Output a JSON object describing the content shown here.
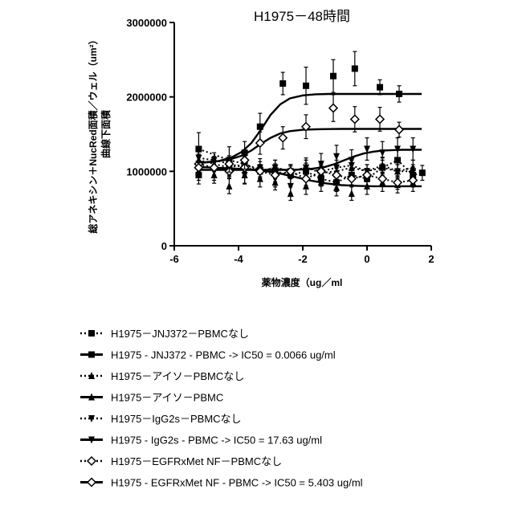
{
  "chart_data": {
    "type": "scatter",
    "title": "H1975－48時間",
    "xlabel": "薬物濃度（ug／ml",
    "ylabel_line1": "総アネキシン＋NucRed面積／ウェル（um²）",
    "ylabel_line2": "曲線下面積",
    "xlim": [
      -6,
      2
    ],
    "ylim": [
      0,
      3000000
    ],
    "x_ticks": [
      -6,
      -4,
      -2,
      0,
      2
    ],
    "x_tick_labels": [
      "-6",
      "-4",
      "-2",
      "0",
      "2"
    ],
    "y_ticks": [
      0,
      1000000,
      2000000,
      3000000
    ],
    "y_tick_labels": [
      "0",
      "1000000",
      "2000000",
      "3000000"
    ],
    "legend_position": "bottom",
    "series": [
      {
        "name": "H1975－JNJ372－PBMCなし",
        "marker": "square",
        "line": "dotted",
        "color": "#000000",
        "x": [
          -5.24,
          -4.29,
          -3.81,
          -3.33,
          -2.86,
          -2.38,
          -1.9,
          -1.43,
          -0.95,
          -0.48,
          0,
          0.48,
          0.95,
          1.43,
          1.72
        ],
        "y": [
          1300000,
          1150000,
          1100000,
          1020000,
          1000000,
          950000,
          1000000,
          900000,
          850000,
          950000,
          900000,
          1050000,
          1150000,
          950000,
          980000
        ],
        "err": [
          220000,
          180000,
          130000,
          110000,
          100000,
          120000,
          110000,
          100000,
          120000,
          130000,
          120000,
          140000,
          160000,
          110000,
          100000
        ],
        "fit_x": [],
        "fit_y": []
      },
      {
        "name": "H1975 - JNJ372 - PBMC -> IC50 = 0.0066 ug/ml",
        "marker": "square",
        "line": "solid",
        "color": "#000000",
        "x": [
          -5.24,
          -4.29,
          -3.81,
          -3.33,
          -2.62,
          -1.9,
          -1.05,
          -0.38,
          0.4,
          1.0
        ],
        "y": [
          950000,
          1050000,
          1250000,
          1600000,
          2180000,
          2150000,
          2280000,
          2380000,
          2130000,
          2040000
        ],
        "err": [
          120000,
          110000,
          150000,
          180000,
          150000,
          250000,
          220000,
          230000,
          100000,
          110000
        ],
        "fit_x": [
          -5.3,
          -5.0,
          -4.6,
          -4.2,
          -3.9,
          -3.6,
          -3.3,
          -3.0,
          -2.7,
          -2.4,
          -2.0,
          -1.6,
          -1.2,
          -0.8,
          -0.4,
          0,
          0.4,
          0.8,
          1.2,
          1.7
        ],
        "fit_y": [
          1110000,
          1120000,
          1140000,
          1190000,
          1260000,
          1380000,
          1560000,
          1760000,
          1900000,
          1980000,
          2020000,
          2035000,
          2040000,
          2040000,
          2040000,
          2040000,
          2040000,
          2040000,
          2040000,
          2040000
        ]
      },
      {
        "name": "H1975－アイソ－PBMCなし",
        "marker": "triangle-up",
        "line": "dotted",
        "color": "#000000",
        "x": [
          -5.24,
          -4.76,
          -4.29,
          -3.81,
          -3.33,
          -2.86,
          -2.38,
          -1.9,
          -1.43,
          -0.95,
          -0.48,
          0,
          0.48,
          0.95,
          1.43
        ],
        "y": [
          1150000,
          1100000,
          1050000,
          1100000,
          1000000,
          1050000,
          1000000,
          1050000,
          980000,
          1000000,
          1050000,
          1000000,
          1080000,
          1000000,
          1050000
        ],
        "err": [
          110000,
          100000,
          90000,
          100000,
          90000,
          100000,
          90000,
          100000,
          90000,
          90000,
          100000,
          90000,
          100000,
          90000,
          100000
        ],
        "fit_x": [],
        "fit_y": []
      },
      {
        "name": "H1975－アイソ－PBMC",
        "marker": "triangle-up",
        "line": "solid",
        "color": "#000000",
        "x": [
          -5.24,
          -4.76,
          -4.29,
          -3.81,
          -3.33,
          -2.86,
          -2.38,
          -1.9,
          -1.43,
          -0.95,
          -0.48,
          0,
          0.48,
          0.95,
          1.43
        ],
        "y": [
          1000000,
          950000,
          800000,
          950000,
          900000,
          850000,
          700000,
          800000,
          850000,
          780000,
          700000,
          800000,
          850000,
          820000,
          850000
        ],
        "err": [
          120000,
          110000,
          100000,
          120000,
          110000,
          100000,
          90000,
          110000,
          120000,
          110000,
          90000,
          110000,
          120000,
          110000,
          120000
        ],
        "fit_x": [
          -5.3,
          -4.8,
          -4.3,
          -3.8,
          -3.3,
          -2.8,
          -2.3,
          -1.8,
          -1.3,
          -0.8,
          -0.3,
          0.2,
          0.7,
          1.2,
          1.7
        ],
        "fit_y": [
          1060000,
          1050000,
          1040000,
          1030000,
          1010000,
          980000,
          930000,
          880000,
          840000,
          815000,
          805000,
          800000,
          800000,
          800000,
          800000
        ]
      },
      {
        "name": "H1975－IgG2s－PBMCなし",
        "marker": "triangle-down",
        "line": "dotted",
        "color": "#000000",
        "x": [
          -5.24,
          -4.76,
          -4.29,
          -3.81,
          -3.33,
          -2.86,
          -2.38,
          -1.9,
          -1.43,
          -0.95,
          -0.48,
          0,
          0.48,
          0.95,
          1.43
        ],
        "y": [
          1180000,
          1150000,
          1100000,
          1050000,
          1000000,
          1050000,
          1000000,
          1050000,
          1000000,
          1050000,
          1080000,
          1000000,
          1050000,
          1000000,
          1000000
        ],
        "err": [
          100000,
          100000,
          90000,
          100000,
          90000,
          100000,
          90000,
          100000,
          90000,
          100000,
          100000,
          90000,
          100000,
          90000,
          90000
        ],
        "fit_x": [],
        "fit_y": []
      },
      {
        "name": "H1975 - IgG2s - PBMC -> IC50 = 17.63 ug/ml",
        "marker": "triangle-down",
        "line": "solid",
        "color": "#000000",
        "x": [
          -5.24,
          -4.76,
          -4.29,
          -3.81,
          -3.33,
          -2.86,
          -2.38,
          -1.9,
          -1.43,
          -0.95,
          -0.48,
          0,
          0.48,
          0.95,
          1.43
        ],
        "y": [
          1100000,
          1000000,
          1050000,
          950000,
          1050000,
          900000,
          800000,
          1050000,
          1100000,
          1200000,
          1150000,
          1300000,
          1250000,
          1300000,
          1300000
        ],
        "err": [
          130000,
          120000,
          120000,
          110000,
          120000,
          110000,
          100000,
          130000,
          140000,
          150000,
          140000,
          150000,
          150000,
          150000,
          150000
        ],
        "fit_x": [
          -5.3,
          -4.8,
          -4.3,
          -3.8,
          -3.3,
          -2.8,
          -2.3,
          -1.8,
          -1.3,
          -1.0,
          -0.7,
          -0.4,
          -0.1,
          0.2,
          0.5,
          0.8,
          1.1,
          1.4,
          1.7
        ],
        "fit_y": [
          1020000,
          1020000,
          1020000,
          1020000,
          1020000,
          1020000,
          1020000,
          1030000,
          1060000,
          1100000,
          1150000,
          1200000,
          1240000,
          1265000,
          1280000,
          1285000,
          1290000,
          1290000,
          1290000
        ]
      },
      {
        "name": "H1975－EGFRxMet NF－PBMCなし",
        "marker": "diamond",
        "line": "dotted",
        "color": "#000000",
        "x": [
          -5.24,
          -4.76,
          -4.29,
          -3.81,
          -3.33,
          -2.86,
          -2.38,
          -1.9,
          -1.43,
          -0.95,
          -0.48,
          0,
          0.48,
          0.95,
          1.43
        ],
        "y": [
          1100000,
          1050000,
          1000000,
          1050000,
          1000000,
          950000,
          1000000,
          900000,
          1000000,
          950000,
          900000,
          950000,
          900000,
          850000,
          880000
        ],
        "err": [
          100000,
          100000,
          90000,
          100000,
          90000,
          90000,
          90000,
          90000,
          90000,
          90000,
          90000,
          90000,
          90000,
          90000,
          90000
        ],
        "fit_x": [],
        "fit_y": []
      },
      {
        "name": "H1975 - EGFRxMet NF - PBMC -> IC50 = 5.403 ug/ml",
        "marker": "diamond",
        "line": "solid",
        "color": "#000000",
        "x": [
          -5.24,
          -4.29,
          -3.81,
          -3.33,
          -2.62,
          -1.9,
          -1.05,
          -0.38,
          0.4,
          1.0
        ],
        "y": [
          1050000,
          1100000,
          1150000,
          1380000,
          1450000,
          1600000,
          1850000,
          1700000,
          1700000,
          1560000
        ],
        "err": [
          100000,
          110000,
          120000,
          150000,
          150000,
          160000,
          180000,
          170000,
          160000,
          100000
        ],
        "fit_x": [
          -5.3,
          -5.0,
          -4.6,
          -4.2,
          -3.9,
          -3.6,
          -3.3,
          -3.0,
          -2.7,
          -2.4,
          -2.0,
          -1.6,
          -1.2,
          -0.8,
          -0.4,
          0,
          0.4,
          0.8,
          1.2,
          1.7
        ],
        "fit_y": [
          1120000,
          1125000,
          1140000,
          1170000,
          1210000,
          1280000,
          1370000,
          1450000,
          1510000,
          1540000,
          1558000,
          1565000,
          1568000,
          1570000,
          1570000,
          1570000,
          1570000,
          1570000,
          1570000,
          1570000
        ]
      }
    ]
  }
}
